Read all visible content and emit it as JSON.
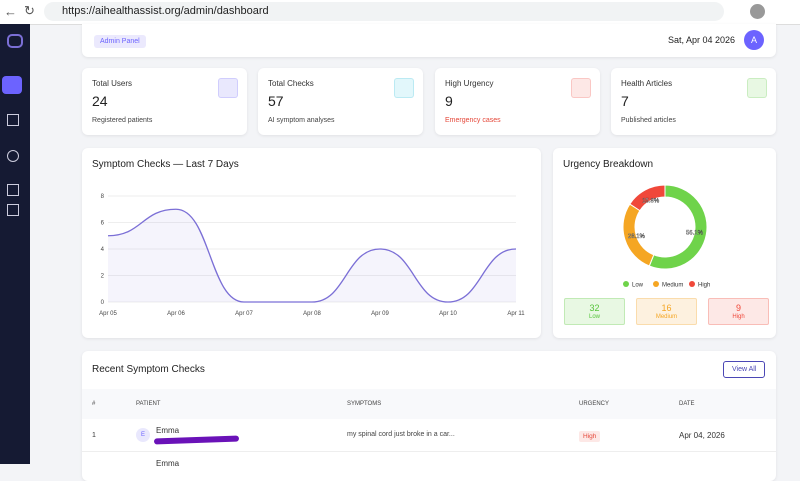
{
  "browser": {
    "url": "https://aihealthassist.org/admin/dashboard"
  },
  "header": {
    "badge": "Admin Panel",
    "date": "Sat, Apr 04 2026",
    "avatar": "A"
  },
  "stats": [
    {
      "title": "Total Users",
      "value": "24",
      "note": "Registered patients"
    },
    {
      "title": "Total Checks",
      "value": "57",
      "note": "AI symptom analyses"
    },
    {
      "title": "High Urgency",
      "value": "9",
      "note": "Emergency cases"
    },
    {
      "title": "Health Articles",
      "value": "7",
      "note": "Published articles"
    }
  ],
  "chart_data": [
    {
      "type": "line",
      "title": "Symptom Checks — Last 7 Days",
      "categories": [
        "Apr 05",
        "Apr 06",
        "Apr 07",
        "Apr 08",
        "Apr 09",
        "Apr 10",
        "Apr 11"
      ],
      "values": [
        5,
        7,
        0,
        0,
        4,
        0,
        4
      ],
      "color": "#7b6fd6",
      "ylim": [
        0,
        8
      ],
      "yticks": [
        0,
        2,
        4,
        6,
        8
      ],
      "grid": true
    },
    {
      "type": "pie",
      "title": "Urgency Breakdown",
      "categories": [
        "Low",
        "Medium",
        "High"
      ],
      "values": [
        56.1,
        28.1,
        15.8
      ],
      "value_labels": [
        "56.1%",
        "28.1%",
        "15.8%"
      ],
      "colors": [
        "#6fd34a",
        "#f5a623",
        "#f0483a"
      ],
      "legend": "bottom"
    }
  ],
  "urgency_summary": [
    {
      "count": "32",
      "label": "Low"
    },
    {
      "count": "16",
      "label": "Medium"
    },
    {
      "count": "9",
      "label": "High"
    }
  ],
  "table": {
    "title": "Recent Symptom Checks",
    "button": "View All",
    "columns": [
      "#",
      "PATIENT",
      "SYMPTOMS",
      "URGENCY",
      "DATE"
    ],
    "rows": [
      {
        "num": "1",
        "initial": "E",
        "patient": "Emma",
        "symptoms": "my spinal cord just broke in a car...",
        "urgency": "High",
        "date": "Apr 04, 2026"
      },
      {
        "patient": "Emma"
      }
    ]
  }
}
